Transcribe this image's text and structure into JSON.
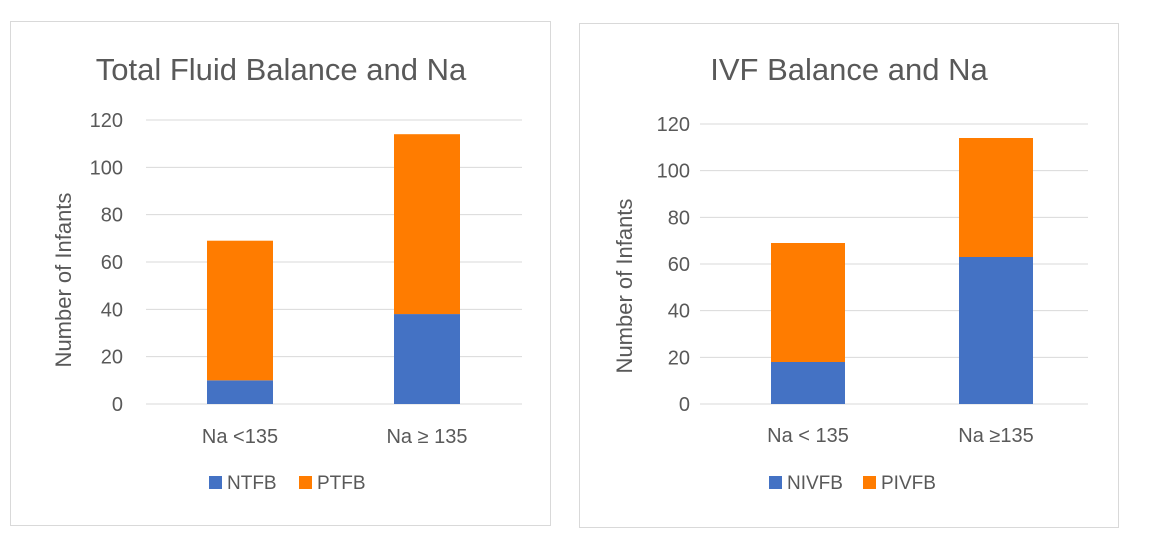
{
  "chart_data": [
    {
      "type": "bar",
      "stacked": true,
      "title": "Total Fluid Balance and Na",
      "ylabel": "Number of Infants",
      "xlabel": "",
      "categories": [
        "Na <135",
        "Na ≥ 135"
      ],
      "series": [
        {
          "name": "NTFB",
          "values": [
            10,
            38
          ],
          "color": "#4472c4"
        },
        {
          "name": "PTFB",
          "values": [
            59,
            76
          ],
          "color": "#ff7c00"
        }
      ],
      "ylim": [
        0,
        120
      ],
      "yticks": [
        0,
        20,
        40,
        60,
        80,
        100,
        120
      ],
      "grid": true,
      "legend": "bottom"
    },
    {
      "type": "bar",
      "stacked": true,
      "title": "IVF Balance and Na",
      "ylabel": "Number of Infants",
      "xlabel": "",
      "categories": [
        "Na < 135",
        "Na ≥135"
      ],
      "series": [
        {
          "name": "NIVFB",
          "values": [
            18,
            63
          ],
          "color": "#4472c4"
        },
        {
          "name": "PIVFB",
          "values": [
            51,
            51
          ],
          "color": "#ff7c00"
        }
      ],
      "ylim": [
        0,
        120
      ],
      "yticks": [
        0,
        20,
        40,
        60,
        80,
        100,
        120
      ],
      "grid": true,
      "legend": "bottom"
    }
  ]
}
